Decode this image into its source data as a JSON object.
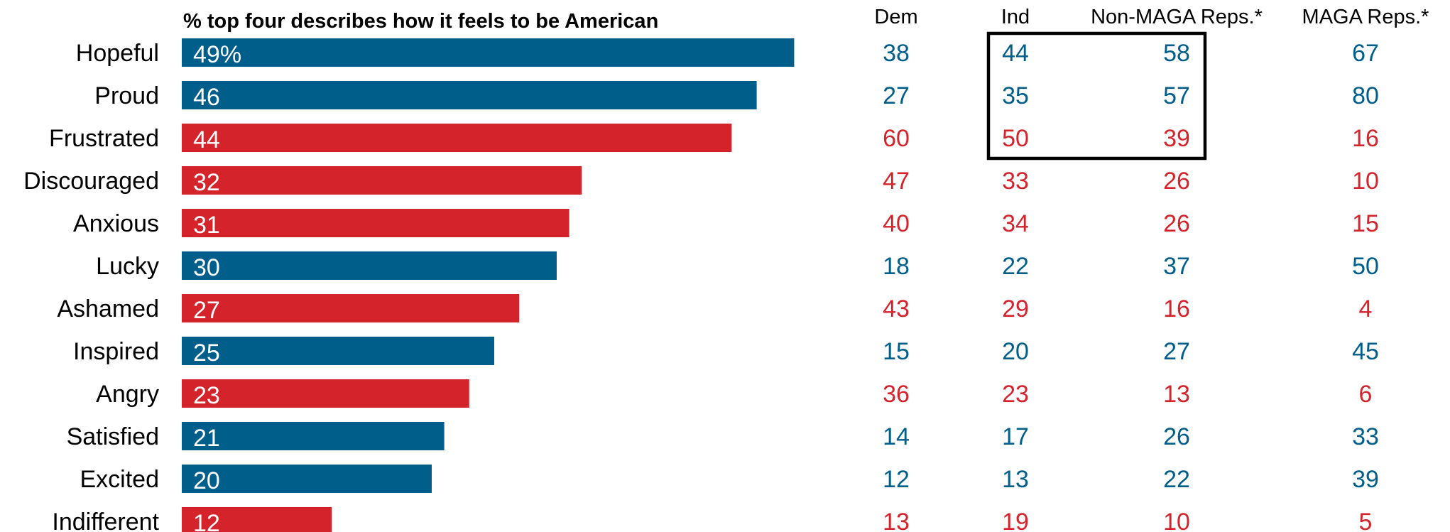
{
  "colors": {
    "positive": "#005e8a",
    "negative": "#d5232b",
    "highlight_box": "#000000"
  },
  "chart_data": {
    "type": "bar",
    "orientation": "horizontal",
    "title": "% top four describes how it feels to be American",
    "categories": [
      "Hopeful",
      "Proud",
      "Frustrated",
      "Discouraged",
      "Anxious",
      "Lucky",
      "Ashamed",
      "Inspired",
      "Angry",
      "Satisfied",
      "Excited",
      "Indifferent"
    ],
    "values": [
      49,
      46,
      44,
      32,
      31,
      30,
      27,
      25,
      23,
      21,
      20,
      12
    ],
    "value_labels": [
      "49%",
      "46",
      "44",
      "32",
      "31",
      "30",
      "27",
      "25",
      "23",
      "21",
      "20",
      "12"
    ],
    "tone": [
      "positive",
      "positive",
      "negative",
      "negative",
      "negative",
      "positive",
      "negative",
      "positive",
      "negative",
      "positive",
      "positive",
      "negative"
    ],
    "xlim": [
      0,
      50
    ],
    "grid": false,
    "table": {
      "columns": [
        "Dem",
        "Ind",
        "Non-MAGA Reps.*",
        "MAGA Reps.*"
      ],
      "rows": [
        [
          38,
          44,
          58,
          67
        ],
        [
          27,
          35,
          57,
          80
        ],
        [
          60,
          50,
          39,
          16
        ],
        [
          47,
          33,
          26,
          10
        ],
        [
          40,
          34,
          26,
          15
        ],
        [
          18,
          22,
          37,
          50
        ],
        [
          43,
          29,
          16,
          4
        ],
        [
          15,
          20,
          27,
          45
        ],
        [
          36,
          23,
          13,
          6
        ],
        [
          14,
          17,
          26,
          33
        ],
        [
          12,
          13,
          22,
          39
        ],
        [
          13,
          19,
          10,
          5
        ]
      ],
      "highlighted_columns": [
        "Ind",
        "Non-MAGA Reps.*"
      ],
      "highlighted_rows": [
        "Hopeful",
        "Proud",
        "Frustrated"
      ]
    }
  }
}
